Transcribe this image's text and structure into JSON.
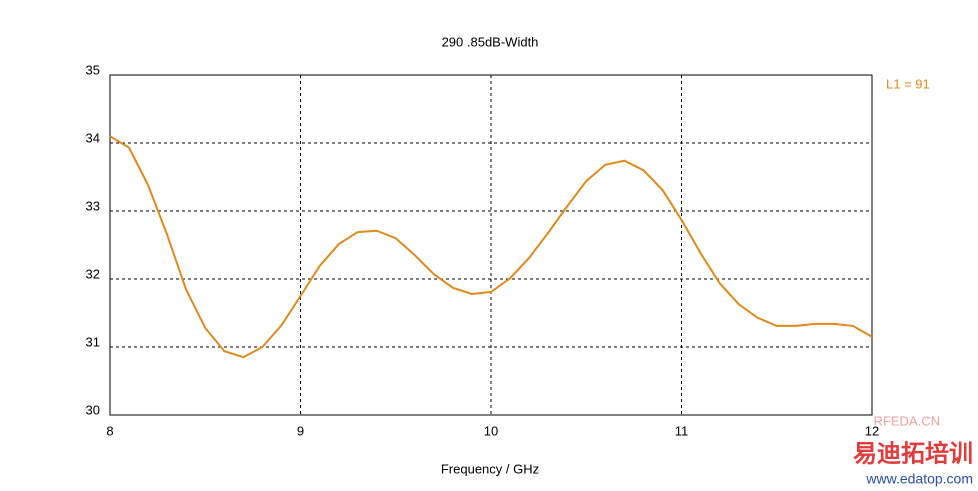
{
  "chart_data": {
    "type": "line",
    "title": "290  .85dB-Width",
    "x_label": "Frequency / GHz",
    "x": [
      8.0,
      8.1,
      8.2,
      8.3,
      8.4,
      8.5,
      8.6,
      8.7,
      8.8,
      8.9,
      9.0,
      9.1,
      9.2,
      9.3,
      9.4,
      9.5,
      9.6,
      9.7,
      9.8,
      9.9,
      10.0,
      10.1,
      10.2,
      10.3,
      10.4,
      10.5,
      10.6,
      10.7,
      10.8,
      10.9,
      11.0,
      11.1,
      11.2,
      11.3,
      11.4,
      11.5,
      11.6,
      11.7,
      11.8,
      11.9,
      12.0
    ],
    "series": [
      {
        "name": "L1 = 91",
        "color": "#e08a1e",
        "values": [
          34.1,
          33.93,
          33.38,
          32.65,
          31.84,
          31.28,
          30.94,
          30.85,
          31.0,
          31.32,
          31.75,
          32.19,
          32.51,
          32.69,
          32.71,
          32.6,
          32.35,
          32.07,
          31.87,
          31.78,
          31.81,
          32.01,
          32.31,
          32.68,
          33.07,
          33.44,
          33.68,
          33.74,
          33.6,
          33.31,
          32.87,
          32.38,
          31.94,
          31.63,
          31.43,
          31.31,
          31.31,
          31.34,
          31.34,
          31.31,
          31.15
        ]
      }
    ],
    "xlim": [
      8,
      12
    ],
    "xticks": [
      8,
      9,
      10,
      11,
      12
    ],
    "ylim": [
      30,
      35
    ],
    "yticks": [
      30,
      31,
      32,
      33,
      34,
      35
    ],
    "grid": true
  },
  "watermark": [
    "RFEDA.CN",
    "易迪拓培训",
    "www.edatop.com"
  ]
}
